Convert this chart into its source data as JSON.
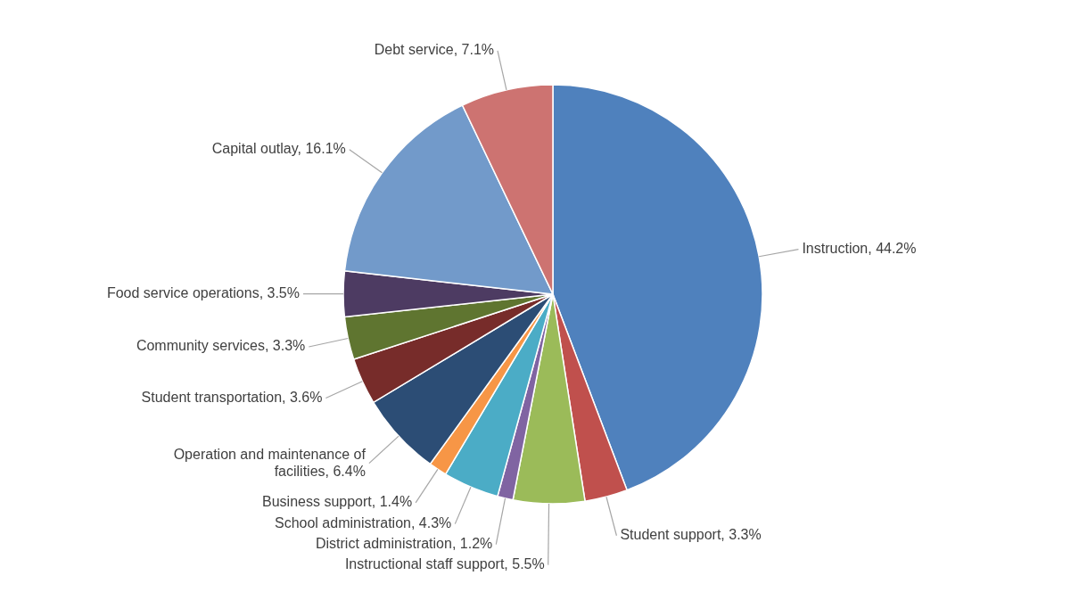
{
  "chart_data": {
    "type": "pie",
    "categories": [
      "Instruction",
      "Student support",
      "Instructional staff support",
      "District administration",
      "School administration",
      "Business support",
      "Operation and maintenance of facilities",
      "Student transportation",
      "Community services",
      "Food service operations",
      "Capital outlay",
      "Debt service"
    ],
    "values": [
      44.2,
      3.3,
      5.5,
      1.2,
      4.3,
      1.4,
      6.4,
      3.6,
      3.3,
      3.5,
      16.1,
      7.1
    ],
    "value_labels": [
      "44.2%",
      "3.3%",
      "5.5%",
      "1.2%",
      "4.3%",
      "1.4%",
      "6.4%",
      "3.6%",
      "3.3%",
      "3.5%",
      "16.1%",
      "7.1%"
    ],
    "colors": [
      "#4f81bd",
      "#c0504d",
      "#9bbb59",
      "#8064a2",
      "#4bacc6",
      "#f79646",
      "#2c4d75",
      "#772c2a",
      "#5f7530",
      "#4d3b62",
      "#729aca",
      "#cd7371"
    ]
  }
}
